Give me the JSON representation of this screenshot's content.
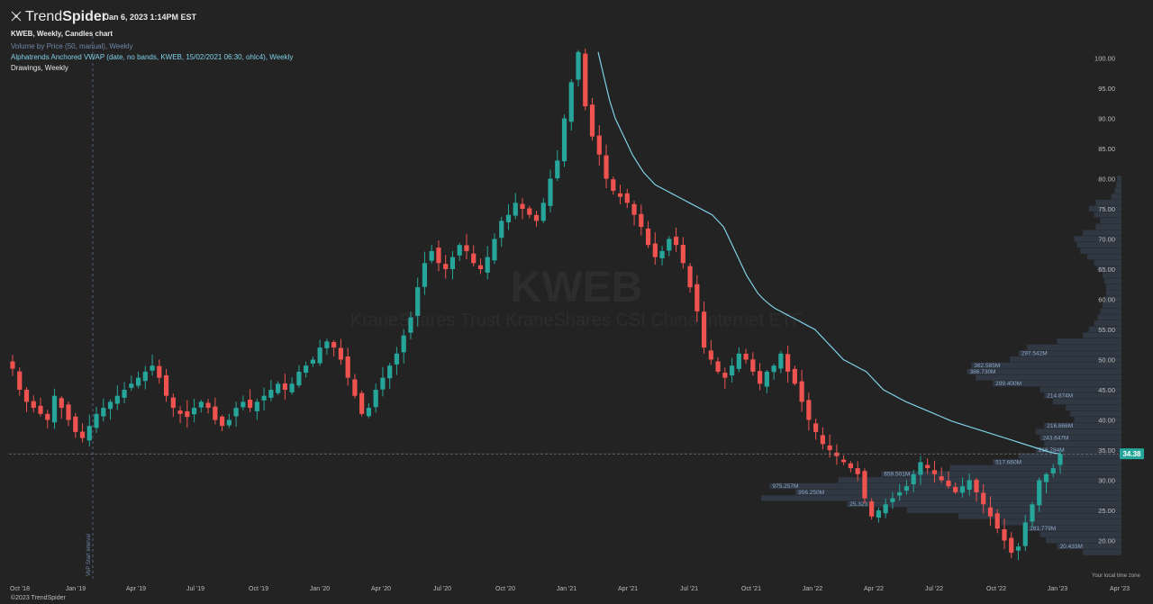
{
  "header": {
    "logo_text_light": "Trend",
    "logo_text_bold": "Spider",
    "datetime": "Jan 6, 2023 1:14PM EST"
  },
  "legend": {
    "line1": "KWEB, Weekly, Candles chart",
    "line2": "Volume by Price (50, manual), Weekly",
    "line3": "Alphatrends Anchored VWAP (date, no bands, KWEB, 15/02/2021 06:30, ohlc4), Weekly",
    "line4": "Drawings, Weekly"
  },
  "footer": {
    "copyright": "©2023 TrendSpider",
    "timezone": "Your local time zone"
  },
  "watermark": {
    "symbol": "KWEB",
    "name": "KraneShares Trust KraneShares CSI China Internet ETF"
  },
  "colors": {
    "background": "#232323",
    "up": "#26a69a",
    "down": "#ef5350",
    "vwap": "#7fd0e8",
    "vbp": "#3a4a5f",
    "vbp_label": "#8fa6c8",
    "price_tag": "#26a69a"
  },
  "chart_data": {
    "type": "candlestick",
    "symbol": "KWEB",
    "timeframe": "Weekly",
    "ylim": [
      15,
      104
    ],
    "y_ticks": [
      "20.00",
      "25.00",
      "30.00",
      "35.00",
      "40.00",
      "45.00",
      "50.00",
      "55.00",
      "60.00",
      "65.00",
      "70.00",
      "75.00",
      "80.00",
      "85.00",
      "90.00",
      "95.00",
      "100.00"
    ],
    "x_ticks": [
      "Oct '18",
      "Jan '19",
      "Apr '19",
      "Jul '19",
      "Oct '19",
      "Jan '20",
      "Apr '20",
      "Jul '20",
      "Oct '20",
      "Jan '21",
      "Apr '21",
      "Jul '21",
      "Oct '21",
      "Jan '22",
      "Apr '22",
      "Jul '22",
      "Oct '22",
      "Jan '23",
      "Apr '23"
    ],
    "last_price": "34.38",
    "vertical_marker_label": "VbP Start Interval",
    "price_path": [
      48.5,
      45,
      43,
      42,
      41,
      40,
      44,
      42,
      40,
      38,
      37,
      39,
      41,
      42,
      43,
      44,
      45,
      46,
      47,
      48,
      49,
      47,
      44,
      42,
      41,
      40.5,
      42,
      43,
      42,
      40,
      39,
      40,
      42,
      43,
      42,
      43,
      44,
      45,
      46,
      45,
      46,
      48,
      49,
      50,
      52,
      53,
      52,
      50,
      47,
      44,
      41,
      42,
      45,
      47,
      49,
      51,
      54,
      57,
      62,
      66,
      68,
      66,
      65,
      67,
      69,
      68,
      66,
      65,
      67,
      70,
      73,
      74,
      76,
      75,
      74,
      73,
      76,
      80,
      83,
      90,
      96,
      101,
      92,
      87,
      84,
      80,
      78,
      77,
      76,
      74,
      72,
      69,
      67,
      68,
      70,
      69,
      66,
      62,
      58,
      52,
      50,
      48,
      47,
      49,
      51,
      50,
      48,
      46,
      48,
      49,
      51,
      48,
      46,
      43,
      40,
      38,
      36,
      35,
      34,
      33,
      32,
      31,
      27,
      24,
      25,
      26,
      27,
      28,
      29,
      31,
      33,
      32,
      31,
      30,
      29,
      28,
      29,
      30,
      28,
      26,
      24,
      22,
      20,
      18,
      19,
      23,
      26,
      30,
      31,
      32,
      34.38
    ],
    "vwap_path": [
      101,
      97,
      93,
      90,
      88,
      86,
      84,
      82.5,
      81,
      80,
      79,
      78.5,
      78,
      77.5,
      77,
      76.5,
      76,
      75.5,
      75,
      74.5,
      74,
      73,
      72,
      70,
      68,
      66,
      64,
      62.5,
      61,
      60,
      59.2,
      58.5,
      58,
      57.5,
      57,
      56.5,
      56,
      55.5,
      55,
      54,
      53,
      52,
      51,
      50,
      49.5,
      49,
      48.5,
      48,
      47,
      46,
      45,
      44.5,
      44,
      43.5,
      43,
      42.6,
      42.2,
      41.8,
      41.4,
      41,
      40.6,
      40.2,
      39.8,
      39.5,
      39.2,
      38.9,
      38.6,
      38.3,
      38,
      37.7,
      37.4,
      37.1,
      36.8,
      36.5,
      36.2,
      35.9,
      35.6,
      35.3,
      35,
      34.7,
      34.5,
      34.38
    ],
    "volume_by_price": [
      {
        "price": 18,
        "volume": 45
      },
      {
        "price": 19,
        "volume": 75,
        "label": "20.433M"
      },
      {
        "price": 20,
        "volume": 88
      },
      {
        "price": 21,
        "volume": 95
      },
      {
        "price": 22,
        "volume": 110,
        "label": "281.779M"
      },
      {
        "price": 23,
        "volume": 140
      },
      {
        "price": 24,
        "volume": 190
      },
      {
        "price": 25,
        "volume": 250
      },
      {
        "price": 26,
        "volume": 320,
        "label": "25.323"
      },
      {
        "price": 27,
        "volume": 420
      },
      {
        "price": 28,
        "volume": 380,
        "label": "956.250M"
      },
      {
        "price": 29,
        "volume": 410,
        "label": "975.257M"
      },
      {
        "price": 30,
        "volume": 330
      },
      {
        "price": 31,
        "volume": 280,
        "label": "659.501M"
      },
      {
        "price": 32,
        "volume": 200
      },
      {
        "price": 33,
        "volume": 150,
        "label": "517.660M"
      },
      {
        "price": 34,
        "volume": 120
      },
      {
        "price": 35,
        "volume": 100,
        "label": "216.784M"
      },
      {
        "price": 36,
        "volume": 90
      },
      {
        "price": 37,
        "volume": 95,
        "label": "243.647M"
      },
      {
        "price": 38,
        "volume": 100
      },
      {
        "price": 39,
        "volume": 90,
        "label": "216.866M"
      },
      {
        "price": 40,
        "volume": 55
      },
      {
        "price": 41,
        "volume": 60
      },
      {
        "price": 42,
        "volume": 65
      },
      {
        "price": 43,
        "volume": 80
      },
      {
        "price": 44,
        "volume": 90,
        "label": "214.874M"
      },
      {
        "price": 45,
        "volume": 95
      },
      {
        "price": 46,
        "volume": 150,
        "label": "299.400M"
      },
      {
        "price": 47,
        "volume": 170
      },
      {
        "price": 48,
        "volume": 180,
        "label": "386.730M"
      },
      {
        "price": 49,
        "volume": 175,
        "label": "382.585M"
      },
      {
        "price": 50,
        "volume": 130
      },
      {
        "price": 51,
        "volume": 120,
        "label": "297.542M"
      },
      {
        "price": 52,
        "volume": 110
      },
      {
        "price": 53,
        "volume": 75
      },
      {
        "price": 54,
        "volume": 45
      },
      {
        "price": 55,
        "volume": 38
      },
      {
        "price": 56,
        "volume": 32
      },
      {
        "price": 57,
        "volume": 28
      },
      {
        "price": 58,
        "volume": 25
      },
      {
        "price": 59,
        "volume": 22
      },
      {
        "price": 60,
        "volume": 20
      },
      {
        "price": 61,
        "volume": 18
      },
      {
        "price": 62,
        "volume": 18
      },
      {
        "price": 63,
        "volume": 20
      },
      {
        "price": 64,
        "volume": 22
      },
      {
        "price": 65,
        "volume": 28
      },
      {
        "price": 66,
        "volume": 32
      },
      {
        "price": 67,
        "volume": 40
      },
      {
        "price": 68,
        "volume": 48
      },
      {
        "price": 69,
        "volume": 52
      },
      {
        "price": 70,
        "volume": 55
      },
      {
        "price": 71,
        "volume": 45
      },
      {
        "price": 72,
        "volume": 30
      },
      {
        "price": 73,
        "volume": 25
      },
      {
        "price": 74,
        "volume": 32
      },
      {
        "price": 75,
        "volume": 38
      },
      {
        "price": 76,
        "volume": 30
      },
      {
        "price": 77,
        "volume": 12
      },
      {
        "price": 78,
        "volume": 8
      },
      {
        "price": 79,
        "volume": 6
      },
      {
        "price": 80,
        "volume": 5
      }
    ]
  }
}
